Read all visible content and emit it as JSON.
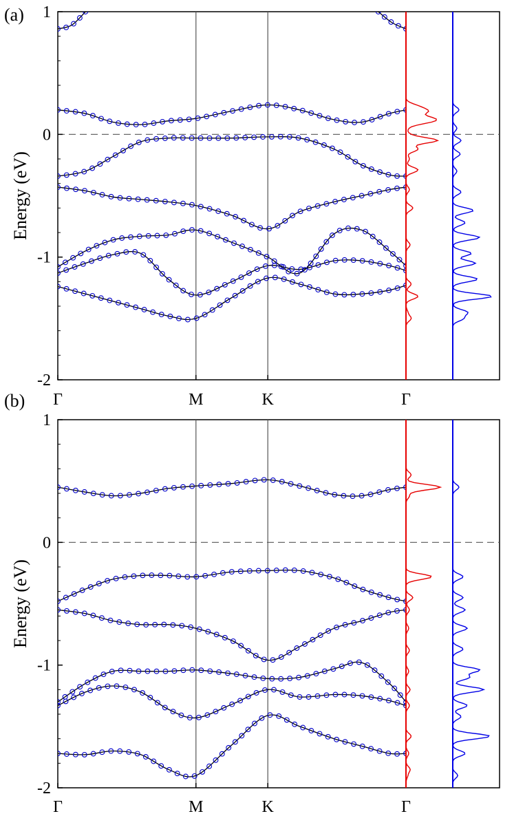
{
  "colors": {
    "band_line": "#000000",
    "band_marker": "#0000c8",
    "dos_red": "#e60000",
    "dos_blue": "#0000e6",
    "fermi_line": "#555555",
    "kpoint_line": "#555555"
  },
  "chart_data": [
    {
      "type": "line",
      "panel_label": "(a)",
      "ylabel": "Energy (eV)",
      "ylim": [
        -2,
        1
      ],
      "yticks": [
        "1",
        "0",
        "-1",
        "-2"
      ],
      "ytick_values": [
        1,
        0,
        -1,
        -2
      ],
      "kpath": [
        "Γ",
        "M",
        "K",
        "Γ"
      ],
      "kpath_x": [
        0,
        1,
        1.52,
        2.52
      ],
      "fermi_level": 0,
      "series": [
        {
          "name": "band 1",
          "x": [
            0,
            0.2,
            0.4,
            0.6,
            0.8,
            1.0,
            1.26,
            1.52,
            1.75,
            2.0,
            2.2,
            2.4,
            2.52
          ],
          "values": [
            -1.24,
            -1.3,
            -1.36,
            -1.42,
            -1.48,
            -1.5,
            -1.33,
            -1.17,
            -1.22,
            -1.3,
            -1.3,
            -1.27,
            -1.23
          ]
        },
        {
          "name": "band 2",
          "x": [
            0,
            0.2,
            0.4,
            0.6,
            0.8,
            1.0,
            1.26,
            1.52,
            1.75,
            2.0,
            2.2,
            2.4,
            2.52
          ],
          "values": [
            -1.13,
            -1.05,
            -0.98,
            -0.97,
            -1.18,
            -1.31,
            -1.2,
            -1.07,
            -1.1,
            -1.03,
            -1.03,
            -1.07,
            -1.11
          ]
        },
        {
          "name": "band 3",
          "x": [
            0,
            0.2,
            0.4,
            0.6,
            0.8,
            1.0,
            1.26,
            1.52,
            1.75,
            2.0,
            2.2,
            2.4,
            2.52
          ],
          "values": [
            -1.08,
            -0.95,
            -0.86,
            -0.83,
            -0.82,
            -0.78,
            -0.88,
            -1.0,
            -1.13,
            -0.81,
            -0.78,
            -0.95,
            -1.07
          ]
        },
        {
          "name": "band 4",
          "x": [
            0,
            0.2,
            0.4,
            0.6,
            0.8,
            1.0,
            1.26,
            1.52,
            1.75,
            2.0,
            2.2,
            2.4,
            2.52
          ],
          "values": [
            -0.43,
            -0.46,
            -0.51,
            -0.53,
            -0.55,
            -0.58,
            -0.66,
            -0.77,
            -0.63,
            -0.55,
            -0.5,
            -0.45,
            -0.43
          ]
        },
        {
          "name": "band 5",
          "x": [
            0,
            0.2,
            0.4,
            0.6,
            0.8,
            1.0,
            1.26,
            1.52,
            1.75,
            2.0,
            2.2,
            2.4,
            2.52
          ],
          "values": [
            -0.34,
            -0.3,
            -0.18,
            -0.06,
            -0.03,
            -0.03,
            -0.03,
            -0.02,
            -0.03,
            -0.12,
            -0.25,
            -0.33,
            -0.34
          ]
        },
        {
          "name": "band 6",
          "x": [
            0,
            0.2,
            0.4,
            0.6,
            0.8,
            1.0,
            1.26,
            1.52,
            1.75,
            2.0,
            2.2,
            2.4,
            2.52
          ],
          "values": [
            0.2,
            0.17,
            0.1,
            0.08,
            0.11,
            0.13,
            0.19,
            0.24,
            0.2,
            0.12,
            0.1,
            0.17,
            0.2
          ]
        },
        {
          "name": "band 7",
          "x": [
            0,
            0.1,
            0.2
          ],
          "values": [
            0.86,
            0.89,
            1.0
          ]
        },
        {
          "name": "band 8",
          "x": [
            2.32,
            2.42,
            2.52
          ],
          "values": [
            1.0,
            0.91,
            0.86
          ]
        }
      ],
      "dos": [
        {
          "name": "red",
          "energy": [
            -1.5,
            -1.45,
            -1.32,
            -1.22,
            -0.9,
            -0.6,
            -0.45,
            -0.29,
            -0.2,
            -0.12,
            -0.05,
            -0.01,
            0.05,
            0.1,
            0.13,
            0.16,
            0.19,
            0.23
          ],
          "values": [
            0.15,
            0.05,
            0.35,
            0.15,
            0.12,
            0.2,
            0.1,
            0.35,
            0.1,
            0.35,
            0.9,
            0.1,
            0.05,
            0.5,
            0.6,
            0.1,
            0.55,
            0.3
          ]
        },
        {
          "name": "blue",
          "energy": [
            -1.5,
            -1.45,
            -1.32,
            -1.18,
            -1.05,
            -0.97,
            -0.84,
            -0.72,
            -0.62,
            -0.47,
            -0.3,
            -0.16,
            -0.05,
            0.05,
            0.2
          ],
          "values": [
            0.25,
            0.35,
            0.95,
            0.6,
            0.55,
            0.45,
            0.65,
            0.3,
            0.5,
            0.2,
            0.1,
            0.18,
            0.2,
            0.1,
            0.15
          ]
        }
      ]
    },
    {
      "type": "line",
      "panel_label": "(b)",
      "ylabel": "Energy (eV)",
      "ylim": [
        -2,
        1
      ],
      "yticks": [
        "1",
        "0",
        "-1",
        "-2"
      ],
      "ytick_values": [
        1,
        0,
        -1,
        -2
      ],
      "kpath": [
        "Γ",
        "M",
        "K",
        "Γ"
      ],
      "kpath_x": [
        0,
        1,
        1.52,
        2.52
      ],
      "fermi_level": 0,
      "series": [
        {
          "name": "band 1",
          "x": [
            0,
            0.2,
            0.4,
            0.6,
            0.8,
            1.0,
            1.26,
            1.52,
            1.75,
            2.0,
            2.2,
            2.4,
            2.52
          ],
          "values": [
            -1.72,
            -1.73,
            -1.7,
            -1.73,
            -1.85,
            -1.9,
            -1.65,
            -1.41,
            -1.5,
            -1.6,
            -1.66,
            -1.72,
            -1.72
          ]
        },
        {
          "name": "band 2",
          "x": [
            0,
            0.2,
            0.4,
            0.6,
            0.8,
            1.0,
            1.26,
            1.52,
            1.75,
            2.0,
            2.2,
            2.4,
            2.52
          ],
          "values": [
            -1.33,
            -1.22,
            -1.17,
            -1.22,
            -1.36,
            -1.43,
            -1.32,
            -1.2,
            -1.26,
            -1.24,
            -1.25,
            -1.29,
            -1.33
          ]
        },
        {
          "name": "band 3",
          "x": [
            0,
            0.2,
            0.4,
            0.6,
            0.8,
            1.0,
            1.26,
            1.52,
            1.75,
            2.0,
            2.2,
            2.4,
            2.52
          ],
          "values": [
            -1.3,
            -1.15,
            -1.05,
            -1.05,
            -1.05,
            -1.04,
            -1.07,
            -1.11,
            -1.1,
            -1.03,
            -0.98,
            -1.15,
            -1.3
          ]
        },
        {
          "name": "band 4",
          "x": [
            0,
            0.2,
            0.4,
            0.6,
            0.8,
            1.0,
            1.26,
            1.52,
            1.75,
            2.0,
            2.2,
            2.4,
            2.52
          ],
          "values": [
            -0.55,
            -0.58,
            -0.64,
            -0.67,
            -0.67,
            -0.7,
            -0.8,
            -0.96,
            -0.85,
            -0.7,
            -0.64,
            -0.57,
            -0.55
          ]
        },
        {
          "name": "band 5",
          "x": [
            0,
            0.2,
            0.4,
            0.6,
            0.8,
            1.0,
            1.26,
            1.52,
            1.75,
            2.0,
            2.2,
            2.4,
            2.52
          ],
          "values": [
            -0.48,
            -0.38,
            -0.3,
            -0.27,
            -0.27,
            -0.28,
            -0.24,
            -0.23,
            -0.23,
            -0.29,
            -0.38,
            -0.45,
            -0.48
          ]
        },
        {
          "name": "band 6",
          "x": [
            0,
            0.2,
            0.4,
            0.6,
            0.8,
            1.0,
            1.26,
            1.52,
            1.75,
            2.0,
            2.2,
            2.4,
            2.52
          ],
          "values": [
            0.45,
            0.41,
            0.38,
            0.4,
            0.44,
            0.46,
            0.48,
            0.51,
            0.46,
            0.39,
            0.38,
            0.43,
            0.45
          ]
        }
      ],
      "dos": [
        {
          "name": "red",
          "energy": [
            -1.9,
            -1.85,
            -1.72,
            -1.58,
            -1.33,
            -1.2,
            -1.05,
            -0.88,
            -0.7,
            -0.55,
            -0.45,
            -0.28,
            0.38,
            0.45,
            0.55
          ],
          "values": [
            0.05,
            0.12,
            0.08,
            0.15,
            0.1,
            0.12,
            0.08,
            0.1,
            0.08,
            0.1,
            0.2,
            0.75,
            0.1,
            1.0,
            0.15
          ]
        },
        {
          "name": "blue",
          "energy": [
            -1.9,
            -1.72,
            -1.58,
            -1.42,
            -1.33,
            -1.2,
            -1.1,
            -1.04,
            -0.87,
            -0.7,
            -0.55,
            -0.45,
            -0.28,
            0.45
          ],
          "values": [
            0.12,
            0.3,
            0.9,
            0.2,
            0.35,
            0.75,
            0.4,
            0.65,
            0.25,
            0.35,
            0.3,
            0.25,
            0.25,
            0.15
          ]
        }
      ]
    }
  ]
}
